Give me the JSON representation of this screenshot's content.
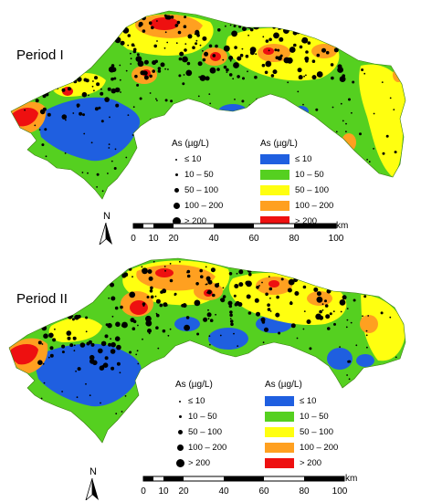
{
  "panels": [
    {
      "title": "Period I",
      "points_legend_title": "As (µg/L)",
      "area_legend_title": "As (µg/L)",
      "point_classes": [
        "≤ 10",
        "10 – 50",
        "50 – 100",
        "100 – 200",
        "> 200"
      ],
      "area_classes": [
        {
          "label": "≤ 10",
          "color": "#1f5fe0"
        },
        {
          "label": "10 – 50",
          "color": "#55d020"
        },
        {
          "label": "50 – 100",
          "color": "#ffff10"
        },
        {
          "label": "100 – 200",
          "color": "#ffa020"
        },
        {
          "label": "> 200",
          "color": "#ee1010"
        }
      ],
      "scale_ticks": [
        "0",
        "10",
        "20",
        "40",
        "60",
        "80",
        "100"
      ],
      "scale_unit": "km",
      "north": "N"
    },
    {
      "title": "Period II",
      "points_legend_title": "As (µg/L)",
      "area_legend_title": "As (µg/L)",
      "point_classes": [
        "≤ 10",
        "10 – 50",
        "50 – 100",
        "100 – 200",
        "> 200"
      ],
      "area_classes": [
        {
          "label": "≤ 10",
          "color": "#1f5fe0"
        },
        {
          "label": "10 – 50",
          "color": "#55d020"
        },
        {
          "label": "50 – 100",
          "color": "#ffff10"
        },
        {
          "label": "100 – 200",
          "color": "#ffa020"
        },
        {
          "label": "> 200",
          "color": "#ee1010"
        }
      ],
      "scale_ticks": [
        "0",
        "10",
        "20",
        "40",
        "60",
        "80",
        "100"
      ],
      "scale_unit": "km",
      "north": "N"
    }
  ]
}
